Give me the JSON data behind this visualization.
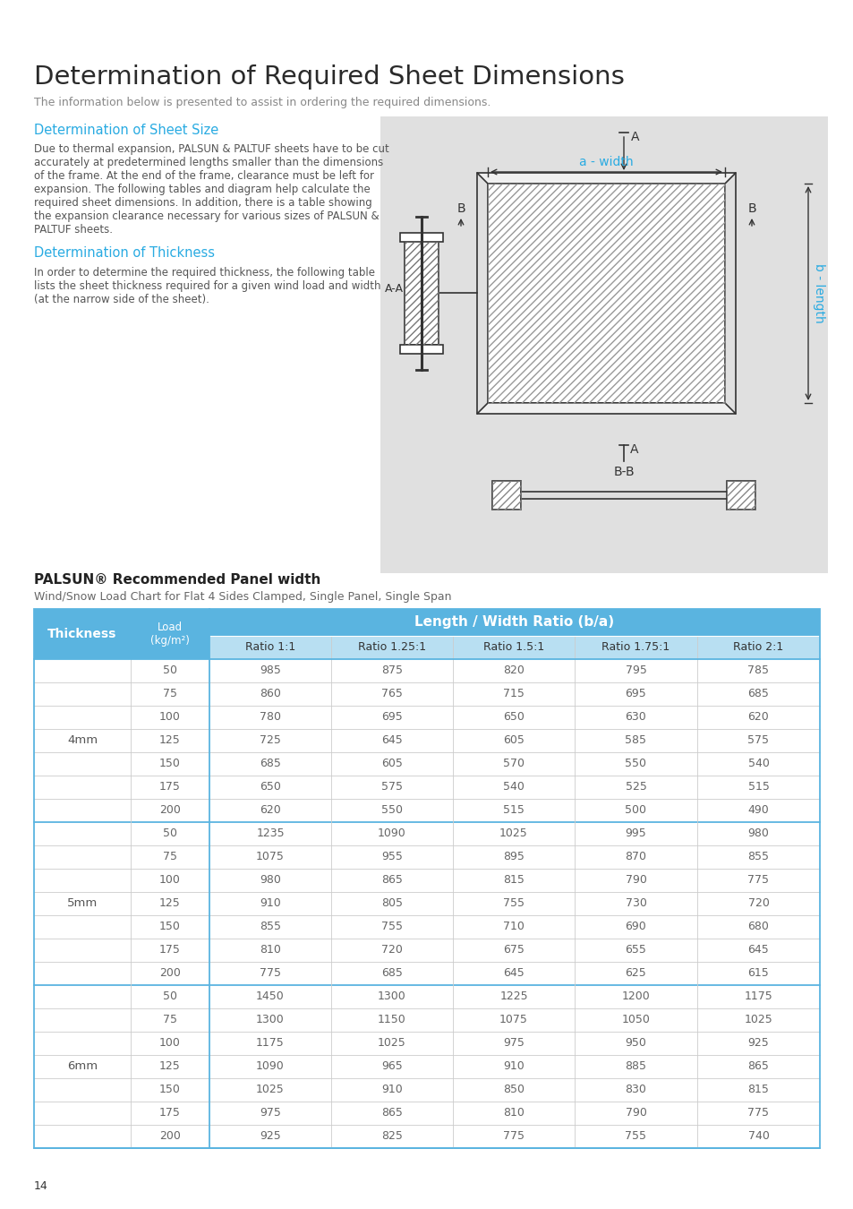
{
  "page_title": "Determination of Required Sheet Dimensions",
  "page_subtitle": "The information below is presented to assist in ordering the required dimensions.",
  "section1_title": "Determination of Sheet Size",
  "section1_body": "Due to thermal expansion, PALSUN & PALTUF sheets have to be cut\naccurately at predetermined lengths smaller than the dimensions\nof the frame. At the end of the frame, clearance must be left for\nexpansion. The following tables and diagram help calculate the\nrequired sheet dimensions. In addition, there is a table showing\nthe expansion clearance necessary for various sizes of PALSUN &\nPALTUF sheets.",
  "section2_title": "Determination of Thickness",
  "section2_body": "In order to determine the required thickness, the following table\nlists the sheet thickness required for a given wind load and width\n(at the narrow side of the sheet).",
  "table_title": "PALSUN® Recommended Panel width",
  "table_subtitle": "Wind/Snow Load Chart for Flat 4 Sides Clamped, Single Panel, Single Span",
  "ratio_header": "Length / Width Ratio (b/a)",
  "thickness_labels": [
    "4mm",
    "5mm",
    "6mm"
  ],
  "loads": [
    50,
    75,
    100,
    125,
    150,
    175,
    200
  ],
  "data_4mm": [
    [
      985,
      875,
      820,
      795,
      785
    ],
    [
      860,
      765,
      715,
      695,
      685
    ],
    [
      780,
      695,
      650,
      630,
      620
    ],
    [
      725,
      645,
      605,
      585,
      575
    ],
    [
      685,
      605,
      570,
      550,
      540
    ],
    [
      650,
      575,
      540,
      525,
      515
    ],
    [
      620,
      550,
      515,
      500,
      490
    ]
  ],
  "data_5mm": [
    [
      1235,
      1090,
      1025,
      995,
      980
    ],
    [
      1075,
      955,
      895,
      870,
      855
    ],
    [
      980,
      865,
      815,
      790,
      775
    ],
    [
      910,
      805,
      755,
      730,
      720
    ],
    [
      855,
      755,
      710,
      690,
      680
    ],
    [
      810,
      720,
      675,
      655,
      645
    ],
    [
      775,
      685,
      645,
      625,
      615
    ]
  ],
  "data_6mm": [
    [
      1450,
      1300,
      1225,
      1200,
      1175
    ],
    [
      1300,
      1150,
      1075,
      1050,
      1025
    ],
    [
      1175,
      1025,
      975,
      950,
      925
    ],
    [
      1090,
      965,
      910,
      885,
      865
    ],
    [
      1025,
      910,
      850,
      830,
      815
    ],
    [
      975,
      865,
      810,
      790,
      775
    ],
    [
      925,
      825,
      775,
      755,
      740
    ]
  ],
  "header_bg": "#5ab4e0",
  "subheader_bg": "#b8dff2",
  "blue_color": "#29abe2",
  "gray_bg": "#e0e0e0",
  "page_num": "14",
  "top_bar_color": "#b0b0b0",
  "bottom_bar_color": "#777777"
}
